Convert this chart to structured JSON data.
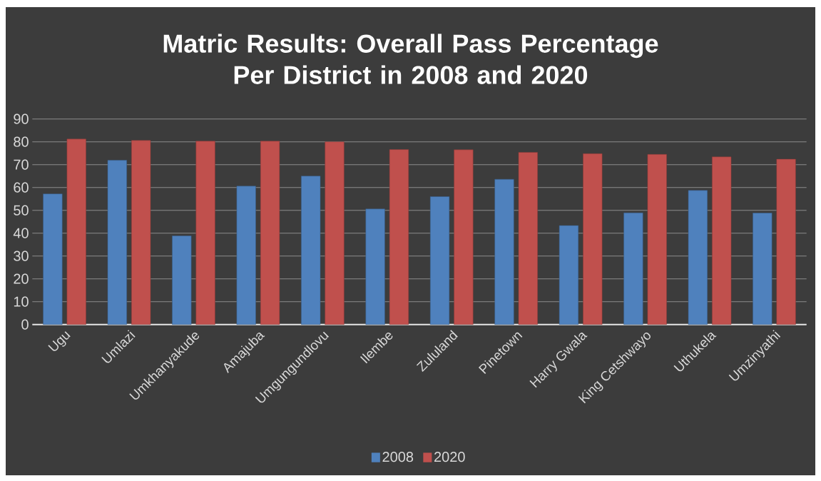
{
  "chart_data": {
    "type": "bar",
    "title": "Matric Results: Overall Pass Percentage Per District in 2008 and 2020",
    "categories": [
      "Ugu",
      "Umlazi",
      "Umkhanyakude",
      "Amajuba",
      "Umgungundlovu",
      "Ilembe",
      "Zululand",
      "Pinetown",
      "Harry Gwala",
      "King Cetshwayo",
      "Uthukela",
      "Umzinyathi"
    ],
    "series": [
      {
        "name": "2008",
        "color": "#4f81bd",
        "values": [
          57.2,
          71.9,
          38.8,
          60.6,
          65,
          50.6,
          56,
          63.6,
          43.3,
          48.9,
          58.7,
          48.8
        ]
      },
      {
        "name": "2020",
        "color": "#c0504d",
        "values": [
          81.2,
          80.6,
          80.3,
          80.3,
          80,
          76.6,
          76.5,
          75.4,
          74.8,
          74.5,
          73.4,
          72.4
        ]
      }
    ],
    "ylim": [
      0,
      90
    ],
    "yticks": [
      0,
      10,
      20,
      30,
      40,
      50,
      60,
      70,
      80,
      90
    ],
    "grid": "y",
    "legend": "bottom"
  }
}
